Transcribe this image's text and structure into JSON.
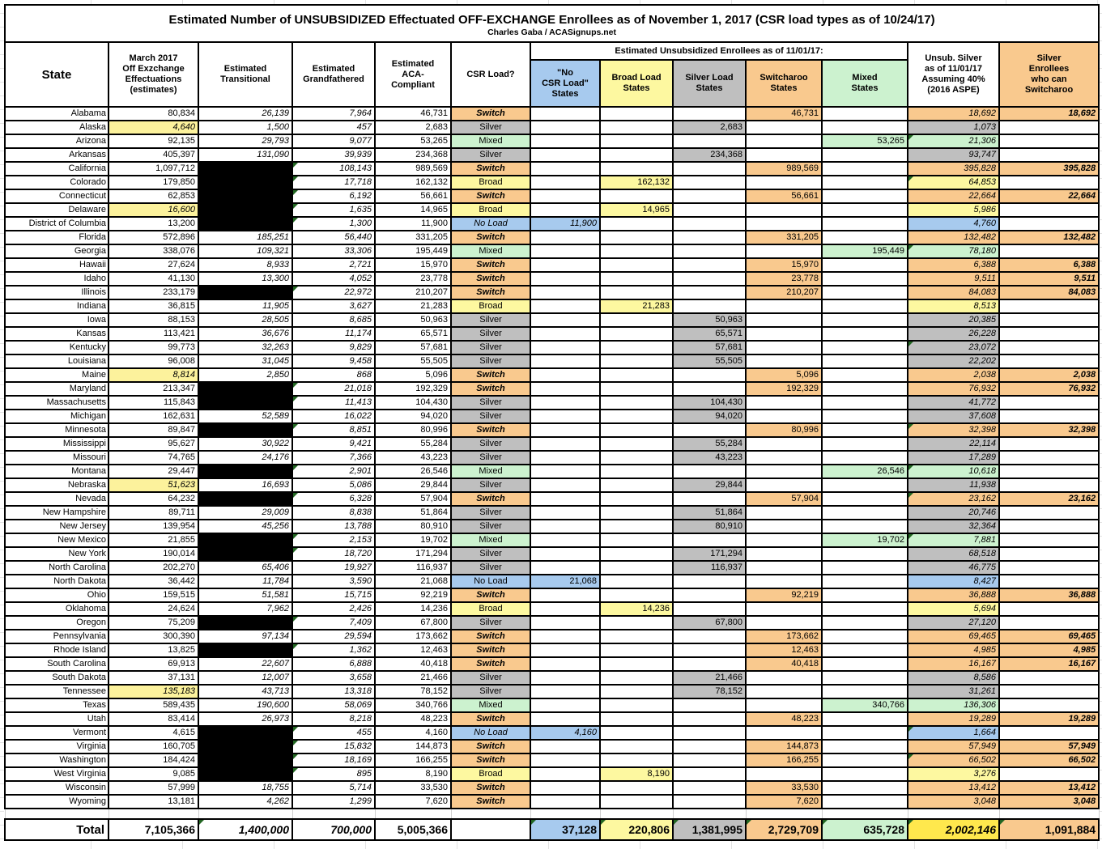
{
  "table": {
    "title": "Estimated Number of UNSUBSIDIZED Effectuated OFF-EXCHANGE Enrollees as of November 1, 2017 (CSR load types as of 10/24/17)",
    "subtitle": "Charles Gaba / ACASignups.net",
    "headers": {
      "state": "State",
      "march": "March 2017\nOff Exzchange\nEffectuations\n(estimates)",
      "transitional": "Estimated\nTransitional",
      "grandfathered": "Estimated\nGrandfathered",
      "aca": "Estimated\nACA-\nCompliant",
      "csr": "CSR Load?",
      "group": "Estimated Unsubsidized Enrollees as of 11/01/17:",
      "noload": "\"No\nCSR Load\"\nStates",
      "broad": "Broad Load\nStates",
      "silver": "Silver Load\nStates",
      "switch": "Switcharoo\nStates",
      "mixed": "Mixed\nStates",
      "unsub": "Unsub. Silver\nas of 11/01/17\nAssuming 40%\n(2016 ASPE)",
      "swsilver": "Silver\nEnrollees\nwho can\nSwitcharoo"
    },
    "csr_labels": {
      "switch": "Switch",
      "silver": "Silver",
      "mixed": "Mixed",
      "broad": "Broad",
      "noload": "No Load"
    },
    "colors": {
      "noload": "#a7caee",
      "broad": "#fdf8a0",
      "silver": "#bfbfbf",
      "switch": "#f9c98e",
      "mixed": "#ccf2cf",
      "march_highlight": "#fcf29c",
      "total_unsub": "#ffe84d",
      "redacted_cell": "#000000",
      "flag_corner": "#226622"
    },
    "rows": [
      {
        "st": "Alabama",
        "m": "80,834",
        "t": "26,139",
        "g": "7,964",
        "a": "46,731",
        "load": "switch",
        "u": "18,692",
        "sw": "18,692"
      },
      {
        "st": "Alaska",
        "m": "4,640",
        "hl": true,
        "t": "1,500",
        "g": "457",
        "a": "2,683",
        "load": "silver",
        "u": "1,073"
      },
      {
        "st": "Arizona",
        "m": "92,135",
        "t": "29,793",
        "g": "9,077",
        "a": "53,265",
        "load": "mixed",
        "u": "21,306",
        "ut": true
      },
      {
        "st": "Arkansas",
        "m": "405,397",
        "t": "131,090",
        "g": "39,939",
        "a": "234,368",
        "load": "silver",
        "u": "93,747"
      },
      {
        "st": "California",
        "m": "1,097,712",
        "t": null,
        "g": "108,143",
        "gt": true,
        "a": "989,569",
        "load": "switch",
        "u": "395,828",
        "sw": "395,828"
      },
      {
        "st": "Colorado",
        "m": "179,850",
        "t": null,
        "g": "17,718",
        "gt": true,
        "a": "162,132",
        "load": "broad",
        "u": "64,853",
        "ut": true
      },
      {
        "st": "Connecticut",
        "m": "62,853",
        "t": null,
        "g": "6,192",
        "gt": true,
        "a": "56,661",
        "load": "switch",
        "u": "22,664",
        "sw": "22,664"
      },
      {
        "st": "Delaware",
        "m": "16,600",
        "hl": true,
        "t": null,
        "g": "1,635",
        "gt": true,
        "a": "14,965",
        "load": "broad",
        "u": "5,986"
      },
      {
        "st": "District of Columbia",
        "m": "13,200",
        "t": null,
        "g": "1,300",
        "gt": true,
        "a": "11,900",
        "load": "noload",
        "li": true,
        "u": "4,760"
      },
      {
        "st": "Florida",
        "m": "572,896",
        "t": "185,251",
        "g": "56,440",
        "a": "331,205",
        "load": "switch",
        "u": "132,482",
        "sw": "132,482"
      },
      {
        "st": "Georgia",
        "m": "338,076",
        "t": "109,321",
        "g": "33,306",
        "a": "195,449",
        "load": "mixed",
        "u": "78,180",
        "ut": true
      },
      {
        "st": "Hawaii",
        "m": "27,624",
        "t": "8,933",
        "g": "2,721",
        "a": "15,970",
        "load": "switch",
        "u": "6,388",
        "sw": "6,388"
      },
      {
        "st": "Idaho",
        "m": "41,130",
        "t": "13,300",
        "g": "4,052",
        "a": "23,778",
        "load": "switch",
        "u": "9,511",
        "sw": "9,511"
      },
      {
        "st": "Illinois",
        "m": "233,179",
        "t": null,
        "g": "22,972",
        "gt": true,
        "a": "210,207",
        "load": "switch",
        "u": "84,083",
        "sw": "84,083"
      },
      {
        "st": "Indiana",
        "m": "36,815",
        "t": "11,905",
        "g": "3,627",
        "a": "21,283",
        "load": "broad",
        "u": "8,513"
      },
      {
        "st": "Iowa",
        "m": "88,153",
        "t": "28,505",
        "g": "8,685",
        "a": "50,963",
        "load": "silver",
        "u": "20,385"
      },
      {
        "st": "Kansas",
        "m": "113,421",
        "t": "36,676",
        "g": "11,174",
        "a": "65,571",
        "load": "silver",
        "u": "26,228"
      },
      {
        "st": "Kentucky",
        "m": "99,773",
        "t": "32,263",
        "g": "9,829",
        "a": "57,681",
        "load": "silver",
        "u": "23,072",
        "ut": true
      },
      {
        "st": "Louisiana",
        "m": "96,008",
        "t": "31,045",
        "g": "9,458",
        "a": "55,505",
        "load": "silver",
        "u": "22,202"
      },
      {
        "st": "Maine",
        "m": "8,814",
        "hl": true,
        "t": "2,850",
        "g": "868",
        "a": "5,096",
        "load": "switch",
        "u": "2,038",
        "sw": "2,038"
      },
      {
        "st": "Maryland",
        "m": "213,347",
        "t": null,
        "g": "21,018",
        "gt": true,
        "a": "192,329",
        "load": "switch",
        "u": "76,932",
        "sw": "76,932"
      },
      {
        "st": "Massachusetts",
        "m": "115,843",
        "t": null,
        "g": "11,413",
        "gt": true,
        "a": "104,430",
        "load": "silver",
        "u": "41,772"
      },
      {
        "st": "Michigan",
        "m": "162,631",
        "t": "52,589",
        "g": "16,022",
        "a": "94,020",
        "load": "silver",
        "u": "37,608"
      },
      {
        "st": "Minnesota",
        "m": "89,847",
        "t": null,
        "g": "8,851",
        "gt": true,
        "a": "80,996",
        "load": "switch",
        "u": "32,398",
        "ut": true,
        "sw": "32,398"
      },
      {
        "st": "Mississippi",
        "m": "95,627",
        "t": "30,922",
        "g": "9,421",
        "a": "55,284",
        "load": "silver",
        "u": "22,114"
      },
      {
        "st": "Missouri",
        "m": "74,765",
        "t": "24,176",
        "g": "7,366",
        "a": "43,223",
        "load": "silver",
        "u": "17,289"
      },
      {
        "st": "Montana",
        "m": "29,447",
        "t": null,
        "g": "2,901",
        "gt": true,
        "a": "26,546",
        "load": "mixed",
        "u": "10,618",
        "ut": true
      },
      {
        "st": "Nebraska",
        "m": "51,623",
        "hl": true,
        "t": "16,693",
        "g": "5,086",
        "a": "29,844",
        "load": "silver",
        "u": "11,938"
      },
      {
        "st": "Nevada",
        "m": "64,232",
        "t": null,
        "g": "6,328",
        "gt": true,
        "a": "57,904",
        "load": "switch",
        "u": "23,162",
        "ut": true,
        "sw": "23,162"
      },
      {
        "st": "New Hampshire",
        "m": "89,711",
        "t": "29,009",
        "g": "8,838",
        "a": "51,864",
        "load": "silver",
        "u": "20,746"
      },
      {
        "st": "New Jersey",
        "m": "139,954",
        "t": "45,256",
        "g": "13,788",
        "a": "80,910",
        "load": "silver",
        "u": "32,364"
      },
      {
        "st": "New Mexico",
        "m": "21,855",
        "t": null,
        "g": "2,153",
        "gt": true,
        "a": "19,702",
        "load": "mixed",
        "u": "7,881",
        "ut": true
      },
      {
        "st": "New York",
        "m": "190,014",
        "t": null,
        "g": "18,720",
        "gt": true,
        "a": "171,294",
        "load": "silver",
        "u": "68,518"
      },
      {
        "st": "North Carolina",
        "m": "202,270",
        "t": "65,406",
        "g": "19,927",
        "a": "116,937",
        "load": "silver",
        "u": "46,775"
      },
      {
        "st": "North Dakota",
        "m": "36,442",
        "t": "11,784",
        "g": "3,590",
        "a": "21,068",
        "load": "noload",
        "u": "8,427"
      },
      {
        "st": "Ohio",
        "m": "159,515",
        "t": "51,581",
        "g": "15,715",
        "a": "92,219",
        "load": "switch",
        "u": "36,888",
        "sw": "36,888"
      },
      {
        "st": "Oklahoma",
        "m": "24,624",
        "t": "7,962",
        "g": "2,426",
        "a": "14,236",
        "load": "broad",
        "u": "5,694"
      },
      {
        "st": "Oregon",
        "m": "75,209",
        "t": null,
        "g": "7,409",
        "gt": true,
        "a": "67,800",
        "load": "silver",
        "u": "27,120"
      },
      {
        "st": "Pennsylvania",
        "m": "300,390",
        "t": "97,134",
        "g": "29,594",
        "a": "173,662",
        "load": "switch",
        "u": "69,465",
        "sw": "69,465"
      },
      {
        "st": "Rhode Island",
        "m": "13,825",
        "t": null,
        "g": "1,362",
        "gt": true,
        "a": "12,463",
        "load": "switch",
        "u": "4,985",
        "sw": "4,985"
      },
      {
        "st": "South Carolina",
        "m": "69,913",
        "t": "22,607",
        "g": "6,888",
        "a": "40,418",
        "load": "switch",
        "u": "16,167",
        "sw": "16,167"
      },
      {
        "st": "South Dakota",
        "m": "37,131",
        "t": "12,007",
        "g": "3,658",
        "a": "21,466",
        "load": "silver",
        "u": "8,586"
      },
      {
        "st": "Tennessee",
        "m": "135,183",
        "hl": true,
        "t": "43,713",
        "g": "13,318",
        "a": "78,152",
        "load": "silver",
        "u": "31,261"
      },
      {
        "st": "Texas",
        "m": "589,435",
        "t": "190,600",
        "g": "58,069",
        "a": "340,766",
        "load": "mixed",
        "u": "136,306"
      },
      {
        "st": "Utah",
        "m": "83,414",
        "t": "26,973",
        "g": "8,218",
        "a": "48,223",
        "load": "switch",
        "u": "19,289",
        "sw": "19,289"
      },
      {
        "st": "Vermont",
        "m": "4,615",
        "t": null,
        "g": "455",
        "gt": true,
        "a": "4,160",
        "load": "noload",
        "li": true,
        "u": "1,664",
        "ut": true
      },
      {
        "st": "Virginia",
        "m": "160,705",
        "t": null,
        "g": "15,832",
        "gt": true,
        "a": "144,873",
        "load": "switch",
        "u": "57,949",
        "sw": "57,949"
      },
      {
        "st": "Washington",
        "m": "184,424",
        "t": null,
        "g": "18,169",
        "gt": true,
        "a": "166,255",
        "load": "switch",
        "u": "66,502",
        "ut": true,
        "sw": "66,502"
      },
      {
        "st": "West Virginia",
        "m": "9,085",
        "t": null,
        "g": "895",
        "gt": true,
        "a": "8,190",
        "load": "broad",
        "u": "3,276"
      },
      {
        "st": "Wisconsin",
        "m": "57,999",
        "t": "18,755",
        "g": "5,714",
        "a": "33,530",
        "load": "switch",
        "u": "13,412",
        "sw": "13,412"
      },
      {
        "st": "Wyoming",
        "m": "13,181",
        "t": "4,262",
        "g": "1,299",
        "a": "7,620",
        "load": "switch",
        "u": "3,048",
        "sw": "3,048"
      }
    ],
    "total": {
      "label": "Total",
      "march": "7,105,366",
      "transitional": "1,400,000",
      "grandfathered": "700,000",
      "aca": "5,005,366",
      "noload": "37,128",
      "broad": "220,806",
      "silver": "1,381,995",
      "switch": "2,729,709",
      "mixed": "635,728",
      "unsub": "2,002,146",
      "swsilver": "1,091,884"
    }
  }
}
